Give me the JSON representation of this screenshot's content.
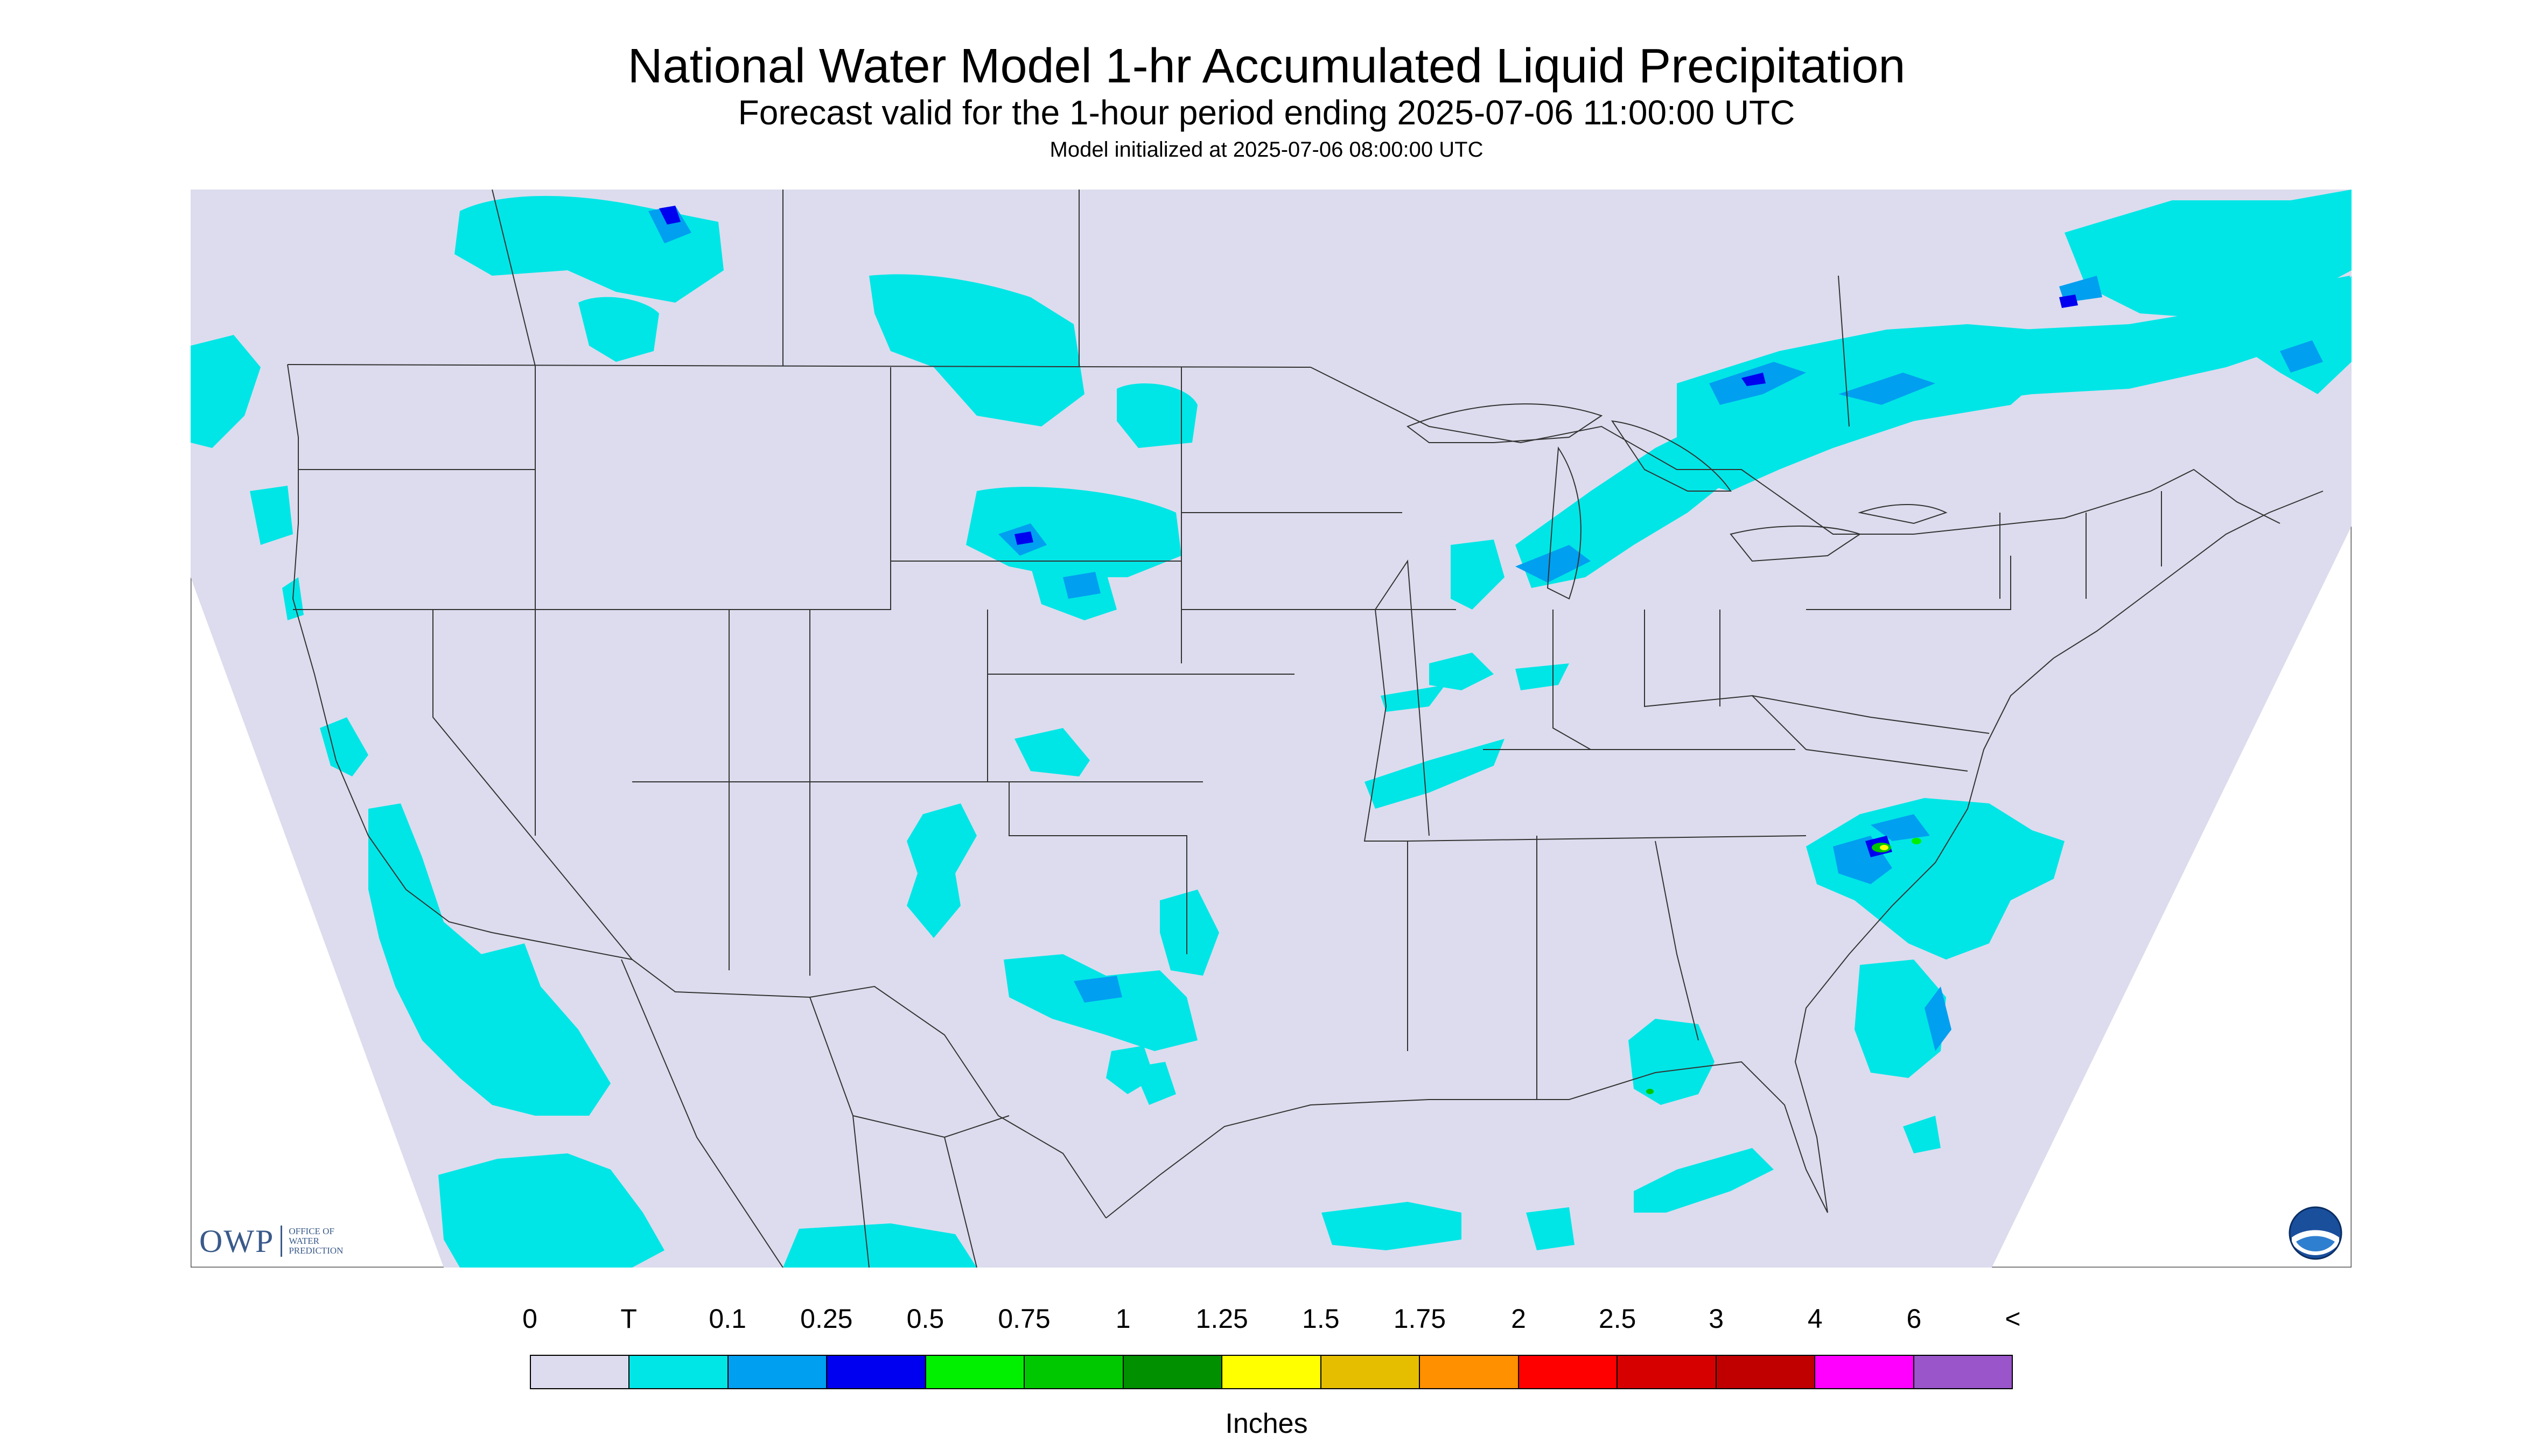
{
  "title": "National Water Model 1-hr Accumulated Liquid Precipitation",
  "subtitle": "Forecast valid for the 1-hour period ending 2025-07-06 11:00:00 UTC",
  "init_line": "Model initialized at 2025-07-06 08:00:00 UTC",
  "legend": {
    "labels": [
      "0",
      "T",
      "0.1",
      "0.25",
      "0.5",
      "0.75",
      "1",
      "1.25",
      "1.5",
      "1.75",
      "2",
      "2.5",
      "3",
      "4",
      "6",
      "<"
    ],
    "colors": [
      "#dcdcee",
      "#00e6e6",
      "#009ff0",
      "#0000f0",
      "#00f000",
      "#00c800",
      "#009000",
      "#ffff00",
      "#e6be00",
      "#ff9000",
      "#ff0000",
      "#d60000",
      "#c00000",
      "#ff00ff",
      "#9955c9"
    ],
    "units": "Inches"
  },
  "map": {
    "background_color": "#dcdcee",
    "outside_domain_color": "#ffffff",
    "border_color": "#333333"
  },
  "logos": {
    "owp_mark": "OWP",
    "owp_text": [
      "OFFICE OF",
      "WATER",
      "PREDICTION"
    ],
    "noaa_text": "NOAA"
  }
}
